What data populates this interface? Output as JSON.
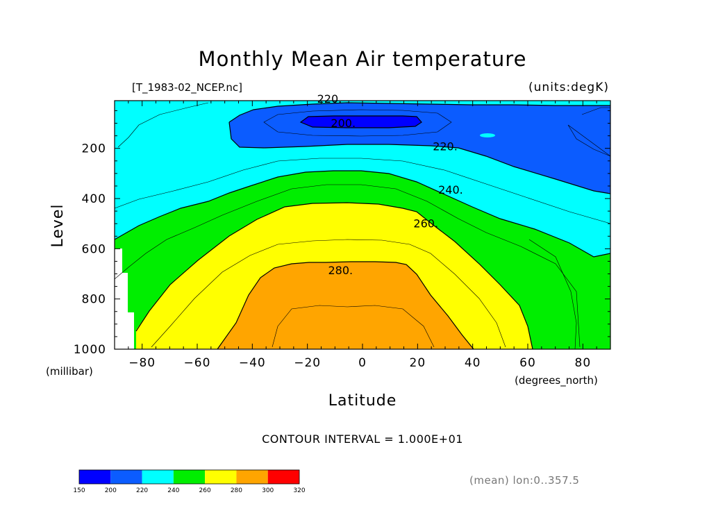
{
  "chart_data": {
    "type": "contour",
    "title": "Monthly Mean Air temperature",
    "dataset": "[T_1983-02_NCEP.nc]",
    "units": "(units:degK)",
    "xlabel": "Latitude",
    "xunits": "(degrees_north)",
    "ylabel": "Level",
    "yunits": "(millibar)",
    "xlim": [
      -90,
      90
    ],
    "ylim": [
      1000,
      10
    ],
    "x_ticks": [
      -80,
      -60,
      -40,
      -20,
      0,
      20,
      40,
      60,
      80
    ],
    "x_tick_labels": [
      "−80",
      "−60",
      "−40",
      "−20",
      "0",
      "20",
      "40",
      "60",
      "80"
    ],
    "y_ticks": [
      200,
      400,
      600,
      800,
      1000
    ],
    "y_tick_labels": [
      "200",
      "400",
      "600",
      "800",
      "1000"
    ],
    "contour_interval_text": "CONTOUR INTERVAL = 1.000E+01",
    "contour_labels": [
      {
        "text": "220.",
        "lat": -12,
        "level": 18
      },
      {
        "text": "200.",
        "lat": -7,
        "level": 115
      },
      {
        "text": "220.",
        "lat": 30,
        "level": 208
      },
      {
        "text": "240.",
        "lat": 32,
        "level": 380
      },
      {
        "text": "260.",
        "lat": 23,
        "level": 515
      },
      {
        "text": "280.",
        "lat": -8,
        "level": 702
      }
    ],
    "colorbar": {
      "levels": [
        "150",
        "200",
        "220",
        "240",
        "260",
        "280",
        "300",
        "320"
      ],
      "colors": [
        "#0000ff",
        "#0b5cff",
        "#00ffff",
        "#00ee00",
        "#ffff00",
        "#ffa500",
        "#ff0000"
      ]
    },
    "averaging_note": "(mean) lon:0..357.5"
  }
}
